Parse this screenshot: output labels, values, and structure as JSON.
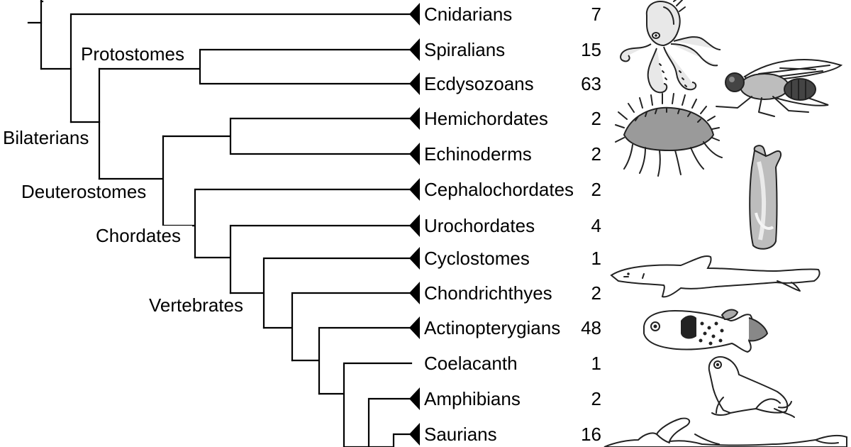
{
  "tree": {
    "taxa": [
      {
        "label": "Cnidarians",
        "count": "7",
        "collapsed": true
      },
      {
        "label": "Spiralians",
        "count": "15",
        "collapsed": true
      },
      {
        "label": "Ecdysozoans",
        "count": "63",
        "collapsed": true
      },
      {
        "label": "Hemichordates",
        "count": "2",
        "collapsed": true
      },
      {
        "label": "Echinoderms",
        "count": "2",
        "collapsed": true
      },
      {
        "label": "Cephalochordates",
        "count": "2",
        "collapsed": true
      },
      {
        "label": "Urochordates",
        "count": "4",
        "collapsed": true
      },
      {
        "label": "Cyclostomes",
        "count": "1",
        "collapsed": true
      },
      {
        "label": "Chondrichthyes",
        "count": "2",
        "collapsed": true
      },
      {
        "label": "Actinopterygians",
        "count": "48",
        "collapsed": true
      },
      {
        "label": "Coelacanth",
        "count": "1",
        "collapsed": false
      },
      {
        "label": "Amphibians",
        "count": "2",
        "collapsed": true
      },
      {
        "label": "Saurians",
        "count": "16",
        "collapsed": true
      }
    ],
    "clades": {
      "protostomes": "Protostomes",
      "bilaterians": "Bilaterians",
      "deuterostomes": "Deuterostomes",
      "chordates": "Chordates",
      "vertebrates": "Vertebrates"
    }
  },
  "illustrations": [
    "octopus-icon",
    "fly-icon",
    "sea-star-icon",
    "tunicate-icon",
    "shark-icon",
    "pufferfish-icon",
    "frog-icon",
    "human-icon"
  ]
}
